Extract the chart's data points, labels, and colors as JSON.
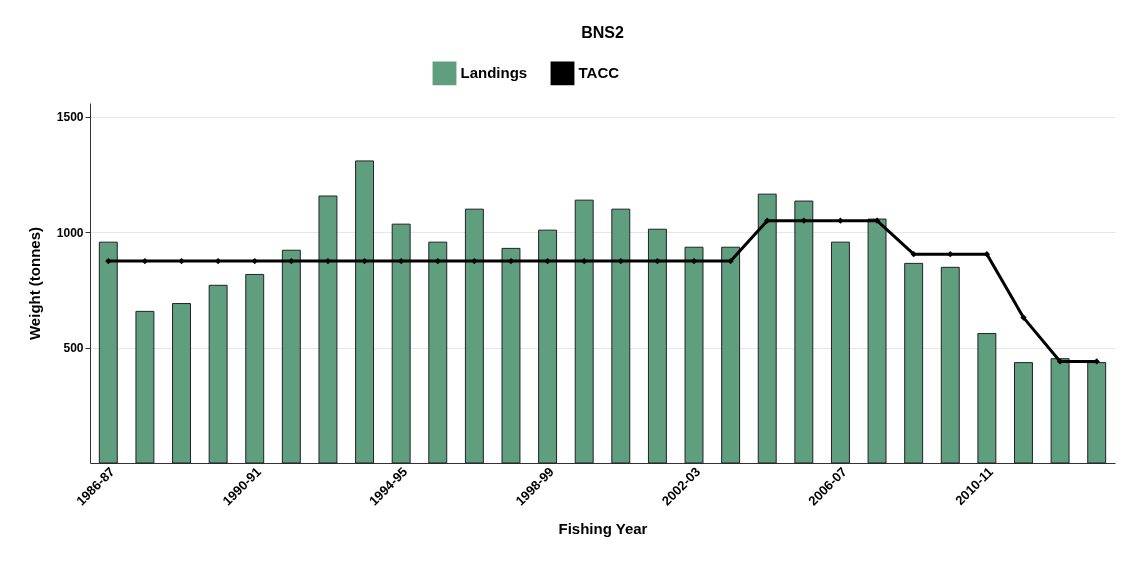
{
  "chart_data": {
    "type": "bar",
    "title": "BNS2",
    "xlabel": "Fishing Year",
    "ylabel": "Weight (tonnes)",
    "categories": [
      "1986-87",
      null,
      null,
      null,
      "1990-91",
      null,
      null,
      null,
      "1994-95",
      null,
      null,
      null,
      "1998-99",
      null,
      null,
      null,
      "2002-03",
      null,
      null,
      null,
      "2006-07",
      null,
      null,
      null,
      "2010-11",
      null,
      null,
      null
    ],
    "series": [
      {
        "name": "Landings",
        "color": "#5f9e7f",
        "values": [
          957,
          657,
          691,
          770,
          817,
          922,
          1157,
          1309,
          1035,
          957,
          1100,
          930,
          1009,
          1139,
          1100,
          1013,
          935,
          935,
          1165,
          1135,
          957,
          1057,
          865,
          848,
          561,
          435,
          452,
          435
        ]
      },
      {
        "name": "TACC",
        "type": "line",
        "color": "#000000",
        "values": [
          875,
          875,
          875,
          875,
          875,
          875,
          875,
          875,
          875,
          875,
          875,
          875,
          875,
          875,
          875,
          875,
          875,
          875,
          1050,
          1050,
          1050,
          1050,
          905,
          905,
          905,
          630,
          440,
          440
        ]
      }
    ],
    "ylim": [
      0,
      1560
    ],
    "yticks": [
      500,
      1000,
      1500
    ],
    "grid": "y",
    "legend": "top",
    "marker": "diamond",
    "line_style": "solid"
  }
}
